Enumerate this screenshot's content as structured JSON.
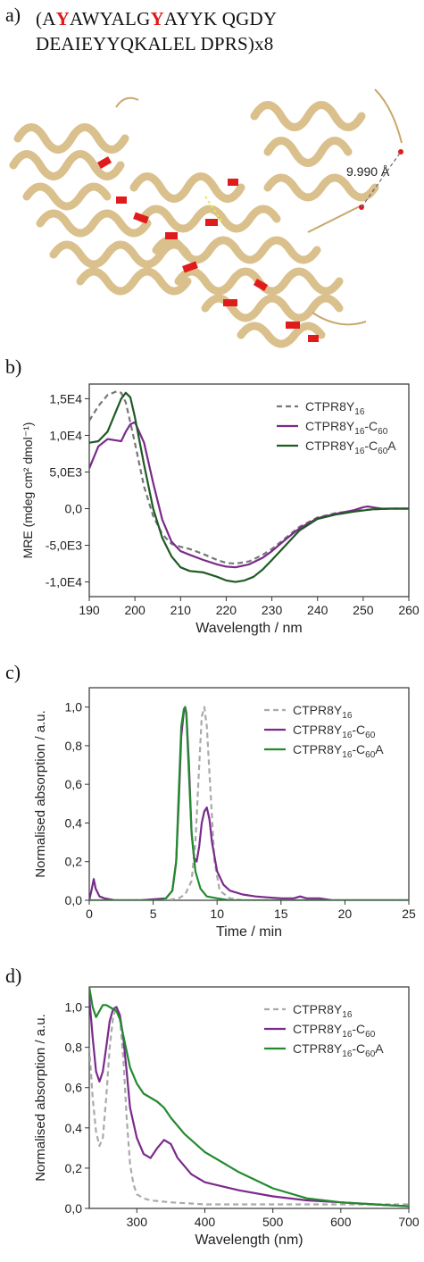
{
  "panel_a": {
    "label": "a)",
    "seq_line1": [
      {
        "text": "(A",
        "highlight": false
      },
      {
        "text": "Y",
        "highlight": true
      },
      {
        "text": "AWYALG",
        "highlight": false
      },
      {
        "text": "Y",
        "highlight": true
      },
      {
        "text": "AYYK QGDY",
        "highlight": false
      }
    ],
    "seq_line2": "DEAIEYYQKALEL DPRS)x8",
    "distance": "9.990 Å",
    "colors": {
      "ribbon": "#f0d9a8",
      "ribbon_edge": "#c9a86a",
      "residue": "#e01b1b"
    }
  },
  "chart_data": [
    {
      "type": "line",
      "panel": "b)",
      "xlabel": "Wavelength / nm",
      "ylabel": "MRE (mdeg cm² dmol⁻¹)",
      "xlim": [
        190,
        260
      ],
      "ylim": [
        -12000,
        17000
      ],
      "xticks": [
        190,
        200,
        210,
        220,
        230,
        240,
        250,
        260
      ],
      "yticks": [
        -10000,
        -5000,
        0,
        5000,
        10000,
        15000
      ],
      "ytick_labels": [
        "-1,0E4",
        "-5,0E3",
        "0,0",
        "5,0E3",
        "1,0E4",
        "1,5E4"
      ],
      "legend_position": "top-right",
      "series": [
        {
          "name": "CTPR8Y16",
          "color": "#777777",
          "dash": "6,4",
          "x": [
            190,
            192,
            194,
            196,
            197,
            198,
            200,
            202,
            204,
            206,
            208,
            210,
            212,
            215,
            218,
            220,
            222,
            225,
            228,
            230,
            233,
            236,
            240,
            244,
            248,
            252,
            256,
            260
          ],
          "y": [
            12000,
            14000,
            15500,
            16000,
            15800,
            14500,
            9000,
            3000,
            -1000,
            -3500,
            -4800,
            -5200,
            -5500,
            -6200,
            -7000,
            -7400,
            -7500,
            -7200,
            -6300,
            -5500,
            -4000,
            -2500,
            -1200,
            -600,
            -300,
            -100,
            0,
            0
          ]
        },
        {
          "name": "CTPR8Y16-C60",
          "color": "#7a2a8a",
          "dash": "",
          "x": [
            190,
            191,
            192,
            194,
            196,
            197,
            198,
            199,
            200,
            202,
            204,
            206,
            208,
            210,
            212,
            215,
            218,
            220,
            222,
            225,
            228,
            230,
            233,
            236,
            240,
            244,
            248,
            250,
            251,
            252,
            254,
            256,
            260
          ],
          "y": [
            5500,
            7000,
            8500,
            9500,
            9300,
            9200,
            10500,
            11500,
            11800,
            9000,
            3500,
            -1500,
            -4500,
            -5800,
            -6300,
            -7000,
            -7600,
            -7900,
            -8000,
            -7600,
            -6700,
            -5800,
            -4200,
            -2700,
            -1300,
            -700,
            -200,
            200,
            300,
            200,
            0,
            0,
            0
          ]
        },
        {
          "name": "CTPR8Y16-C60A",
          "color": "#1f5a24",
          "dash": "",
          "x": [
            190,
            192,
            194,
            196,
            197,
            198,
            199,
            200,
            202,
            204,
            206,
            208,
            210,
            212,
            215,
            218,
            220,
            222,
            224,
            226,
            228,
            230,
            233,
            236,
            240,
            244,
            248,
            252,
            256,
            260
          ],
          "y": [
            9000,
            9200,
            10500,
            13500,
            15000,
            15800,
            15200,
            12500,
            6000,
            0,
            -4000,
            -6500,
            -8000,
            -8500,
            -8700,
            -9300,
            -9800,
            -10000,
            -9800,
            -9300,
            -8300,
            -7000,
            -5000,
            -3000,
            -1400,
            -800,
            -400,
            -100,
            0,
            0
          ]
        }
      ]
    },
    {
      "type": "line",
      "panel": "c)",
      "xlabel": "Time / min",
      "ylabel": "Normalised absorption / a.u.",
      "xlim": [
        0,
        25
      ],
      "ylim": [
        0,
        1.1
      ],
      "xticks": [
        0,
        5,
        10,
        15,
        20,
        25
      ],
      "yticks": [
        0,
        0.2,
        0.4,
        0.6,
        0.8,
        1.0
      ],
      "ytick_labels": [
        "0,0",
        "0,2",
        "0,4",
        "0,6",
        "0,8",
        "1,0"
      ],
      "legend_position": "top-right",
      "series": [
        {
          "name": "CTPR8Y16",
          "color": "#aaaaaa",
          "dash": "6,4",
          "x": [
            0,
            6,
            7,
            7.5,
            8,
            8.3,
            8.6,
            8.8,
            9.0,
            9.2,
            9.5,
            9.8,
            10.2,
            11,
            12,
            25
          ],
          "y": [
            0,
            0,
            0.01,
            0.03,
            0.1,
            0.3,
            0.7,
            0.95,
            1.0,
            0.9,
            0.55,
            0.2,
            0.05,
            0.01,
            0,
            0
          ]
        },
        {
          "name": "CTPR8Y16-C60",
          "color": "#7a2a8a",
          "dash": "",
          "x": [
            0,
            0.2,
            0.35,
            0.5,
            0.8,
            1.2,
            2,
            4,
            6,
            6.5,
            6.8,
            7.0,
            7.2,
            7.4,
            7.5,
            7.6,
            7.8,
            8.0,
            8.2,
            8.4,
            8.6,
            8.8,
            9.0,
            9.2,
            9.4,
            9.6,
            10,
            10.5,
            11,
            12,
            13,
            14,
            15,
            16,
            16.5,
            17,
            18,
            19,
            25
          ],
          "y": [
            0,
            0.06,
            0.11,
            0.06,
            0.02,
            0.01,
            0,
            0,
            0.01,
            0.05,
            0.2,
            0.5,
            0.85,
            0.98,
            1.0,
            0.97,
            0.7,
            0.35,
            0.22,
            0.2,
            0.28,
            0.4,
            0.46,
            0.48,
            0.42,
            0.3,
            0.15,
            0.08,
            0.05,
            0.03,
            0.02,
            0.015,
            0.01,
            0.01,
            0.02,
            0.01,
            0.01,
            0,
            0
          ]
        },
        {
          "name": "CTPR8Y16-C60A",
          "color": "#238a2e",
          "dash": "",
          "x": [
            0,
            5.5,
            6,
            6.5,
            6.8,
            7.0,
            7.2,
            7.4,
            7.5,
            7.6,
            7.8,
            8.0,
            8.3,
            8.7,
            9.2,
            10,
            11,
            25
          ],
          "y": [
            0,
            0,
            0.01,
            0.05,
            0.2,
            0.55,
            0.9,
            0.99,
            1.0,
            0.96,
            0.65,
            0.35,
            0.15,
            0.06,
            0.02,
            0.01,
            0,
            0
          ]
        }
      ]
    },
    {
      "type": "line",
      "panel": "d)",
      "xlabel": "Wavelength (nm)",
      "ylabel": "Normalised absorption / a.u.",
      "xlim": [
        230,
        700
      ],
      "ylim": [
        0,
        1.1
      ],
      "xticks": [
        300,
        400,
        500,
        600,
        700
      ],
      "yticks": [
        0,
        0.2,
        0.4,
        0.6,
        0.8,
        1.0
      ],
      "ytick_labels": [
        "0,0",
        "0,2",
        "0,4",
        "0,6",
        "0,8",
        "1,0"
      ],
      "legend_position": "top-right",
      "series": [
        {
          "name": "CTPR8Y16",
          "color": "#aaaaaa",
          "dash": "6,4",
          "x": [
            230,
            235,
            240,
            245,
            250,
            255,
            260,
            265,
            270,
            275,
            280,
            285,
            290,
            295,
            300,
            310,
            320,
            350,
            400,
            500,
            600,
            700
          ],
          "y": [
            0.8,
            0.55,
            0.38,
            0.31,
            0.35,
            0.55,
            0.8,
            0.95,
            1.0,
            0.95,
            0.75,
            0.45,
            0.22,
            0.12,
            0.07,
            0.05,
            0.04,
            0.03,
            0.02,
            0.02,
            0.02,
            0.02
          ]
        },
        {
          "name": "CTPR8Y16-C60",
          "color": "#7a2a8a",
          "dash": "",
          "x": [
            230,
            235,
            240,
            245,
            250,
            255,
            260,
            265,
            270,
            275,
            280,
            285,
            290,
            300,
            310,
            320,
            330,
            340,
            350,
            360,
            380,
            400,
            450,
            500,
            550,
            600,
            650,
            700
          ],
          "y": [
            1.05,
            0.85,
            0.68,
            0.63,
            0.68,
            0.8,
            0.93,
            0.99,
            1.0,
            0.96,
            0.85,
            0.68,
            0.5,
            0.35,
            0.27,
            0.25,
            0.3,
            0.34,
            0.32,
            0.25,
            0.17,
            0.13,
            0.09,
            0.06,
            0.04,
            0.03,
            0.02,
            0.01
          ]
        },
        {
          "name": "CTPR8Y16-C60A",
          "color": "#238a2e",
          "dash": "",
          "x": [
            230,
            235,
            240,
            245,
            250,
            255,
            260,
            265,
            270,
            275,
            280,
            285,
            290,
            300,
            310,
            320,
            330,
            340,
            350,
            370,
            400,
            450,
            500,
            550,
            600,
            650,
            700
          ],
          "y": [
            1.1,
            1.0,
            0.95,
            0.98,
            1.01,
            1.01,
            1.0,
            0.99,
            0.98,
            0.94,
            0.86,
            0.78,
            0.7,
            0.62,
            0.57,
            0.55,
            0.53,
            0.5,
            0.45,
            0.37,
            0.28,
            0.18,
            0.1,
            0.05,
            0.03,
            0.02,
            0.01
          ]
        }
      ]
    }
  ]
}
